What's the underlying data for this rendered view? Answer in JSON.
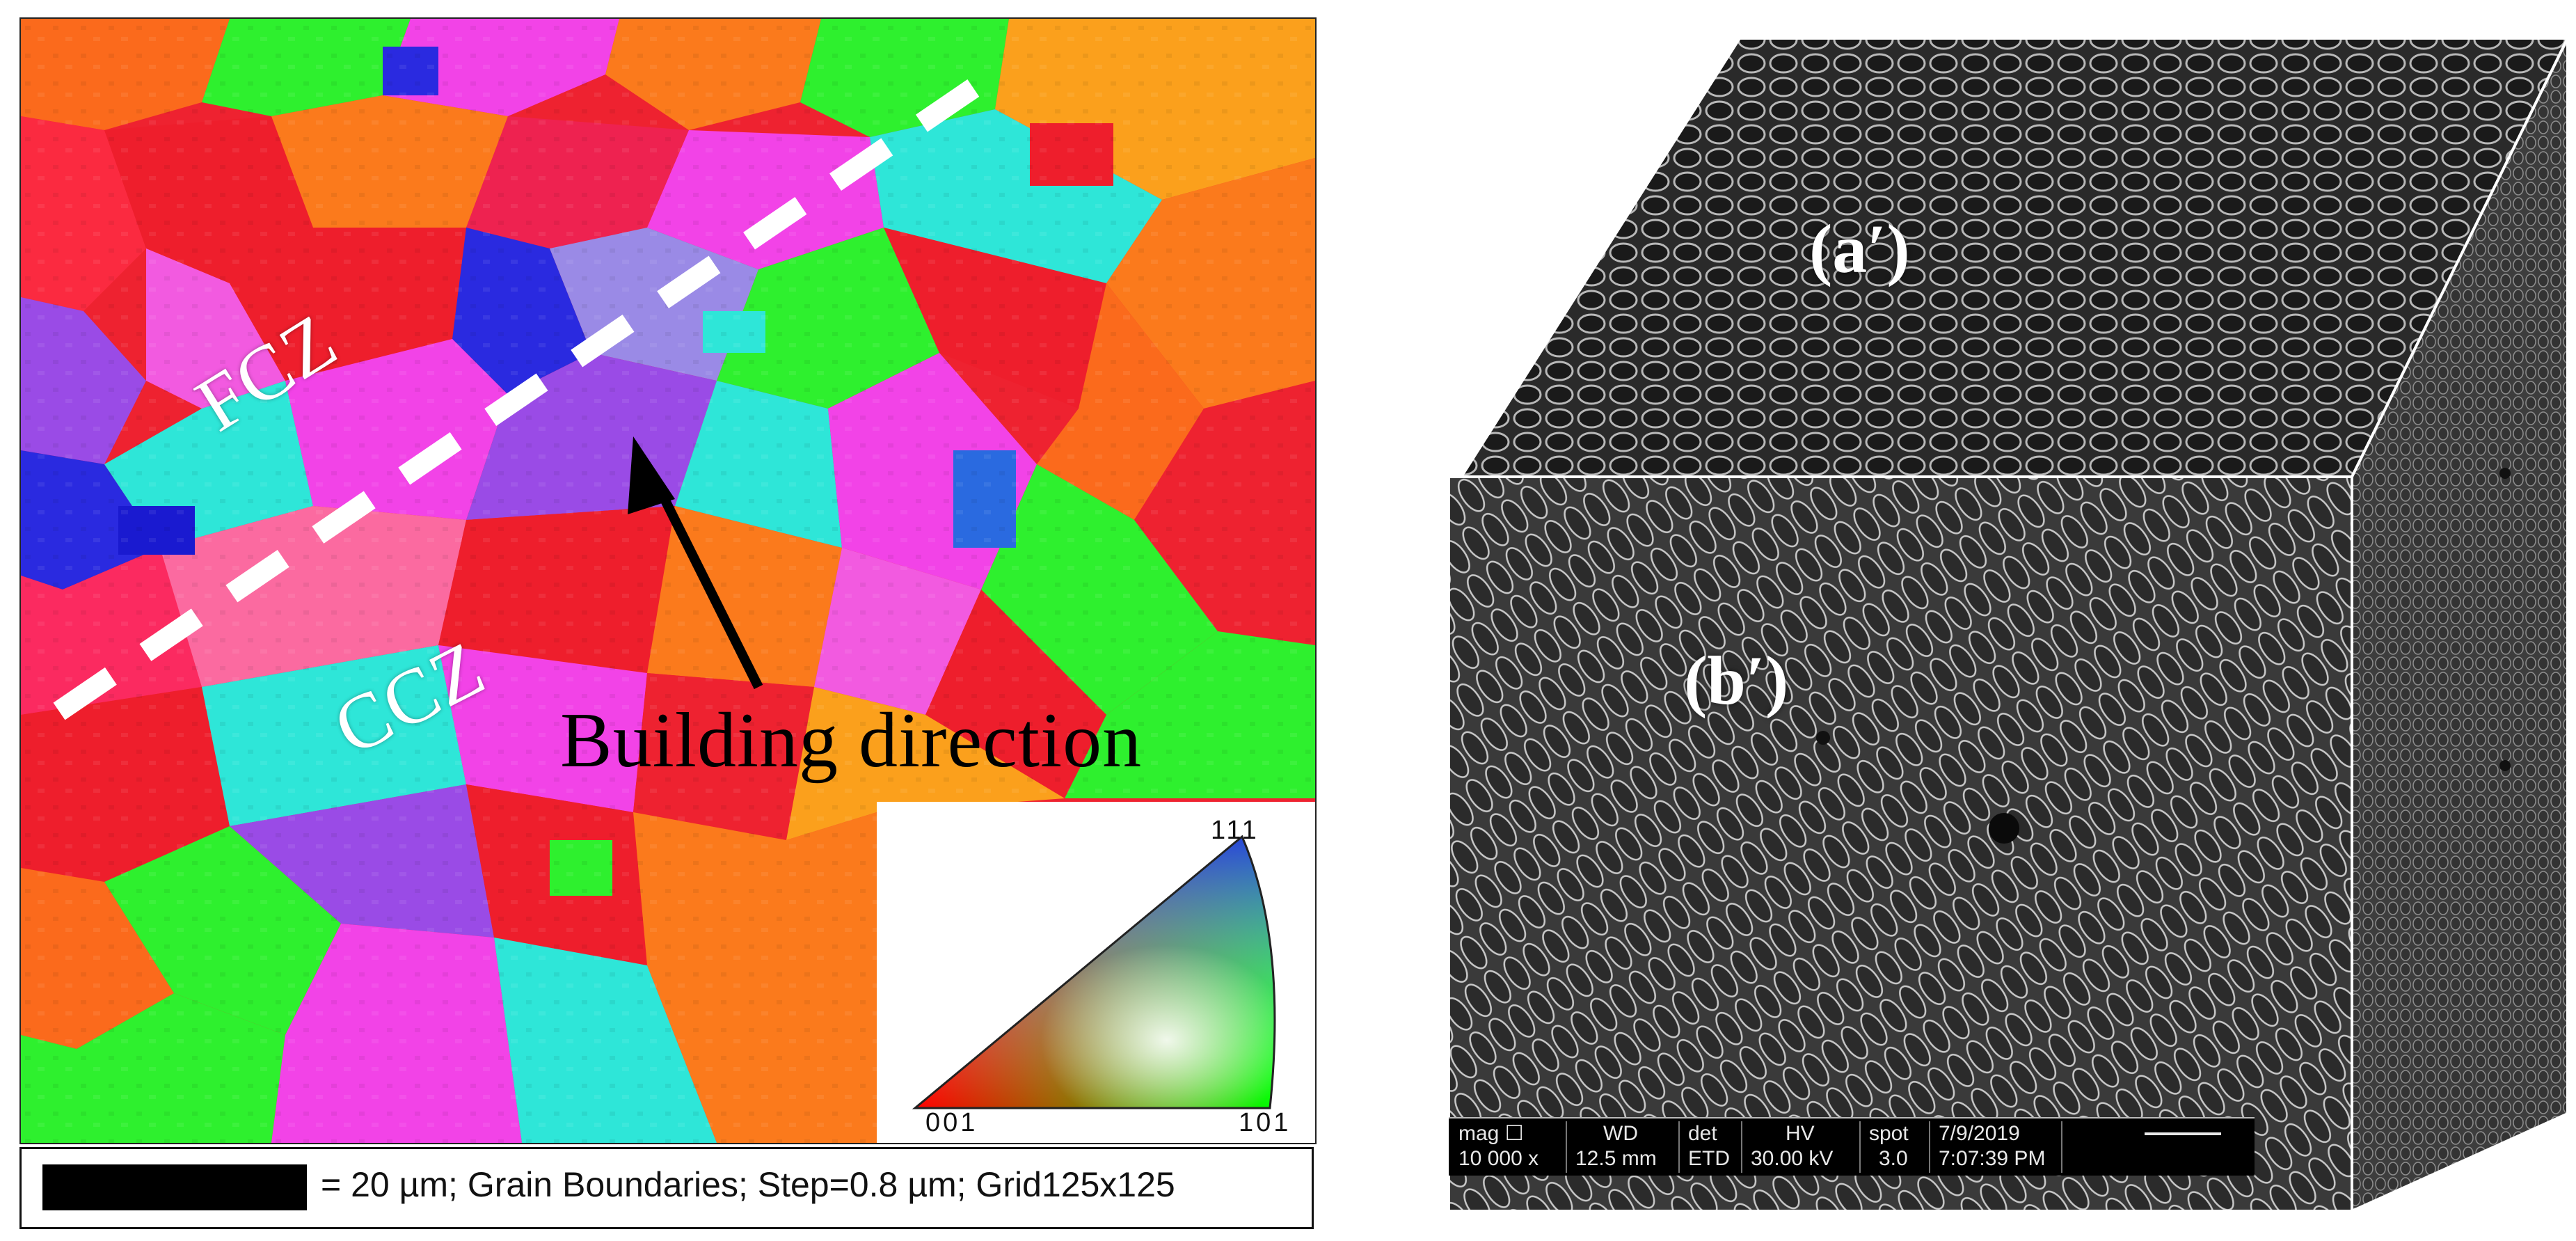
{
  "ebsd_map": {
    "zone_upper": "FCZ",
    "zone_lower": "CCZ",
    "arrow_label": "Building direction",
    "ipf_key": {
      "top": "111",
      "left": "001",
      "right": "101"
    },
    "scale_text": "= 20 µm; Grain Boundaries; Step=0.8 µm; Grid125x125"
  },
  "sem_cube": {
    "top_face_label": "(a′)",
    "front_face_label": "(b′)",
    "info_bar": {
      "mag_label": "mag ☐",
      "mag_value": "10 000 x",
      "wd_label": "WD",
      "wd_value": "12.5 mm",
      "det_label": "det",
      "det_value": "ETD",
      "hv_label": "HV",
      "hv_value": "30.00 kV",
      "spot_label": "spot",
      "spot_value": "3.0",
      "date": "7/9/2019",
      "time": "7:07:39 PM"
    }
  },
  "colors": {
    "red": "#ee1e2c",
    "orange": "#fb7a1c",
    "green": "#2ef02e",
    "magenta": "#f243e7",
    "blue": "#2a2ae0",
    "cyan": "#2ee6d8",
    "violet": "#9a4be6",
    "pink": "#fb6aa0"
  }
}
